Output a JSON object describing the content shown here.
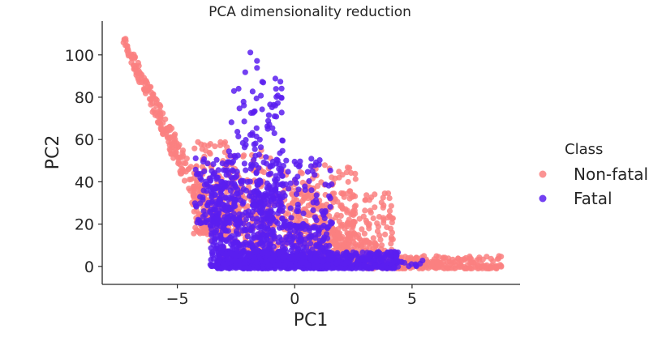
{
  "chart_data": {
    "type": "scatter",
    "title": "PCA dimensionality reduction",
    "xlabel": "PC1",
    "ylabel": "PC2",
    "xlim": [
      -8.2,
      9.6
    ],
    "ylim": [
      -8.5,
      116
    ],
    "xticks": [
      -5,
      0,
      5
    ],
    "xtick_labels": [
      "−5",
      "0",
      "5"
    ],
    "yticks": [
      0,
      20,
      40,
      60,
      80,
      100
    ],
    "ytick_labels": [
      "0",
      "20",
      "40",
      "60",
      "80",
      "100"
    ],
    "grid": false,
    "legend_title": "Class",
    "legend_position": "right",
    "series": [
      {
        "name": "Non-fatal",
        "color": "#fa8080",
        "clusters": [
          {
            "x": [
              -7.3,
              -3.6
            ],
            "y": [
              30,
              110
            ],
            "shape": "band",
            "count": 220
          },
          {
            "x": [
              -4.3,
              -2.8
            ],
            "y": [
              15,
              60
            ],
            "count": 160
          },
          {
            "x": [
              -3.2,
              4.2
            ],
            "y": [
              0,
              35
            ],
            "count": 520
          },
          {
            "x": [
              -0.5,
              2.6
            ],
            "y": [
              10,
              48
            ],
            "count": 220
          },
          {
            "x": [
              -3.0,
              -1.0
            ],
            "y": [
              20,
              55
            ],
            "count": 120
          },
          {
            "x": [
              3.0,
              8.8
            ],
            "y": [
              -1,
              5
            ],
            "count": 260
          },
          {
            "x": [
              0.5,
              3.5
            ],
            "y": [
              2,
              15
            ],
            "count": 160
          }
        ]
      },
      {
        "name": "Fatal",
        "color": "#5a1ef0",
        "clusters": [
          {
            "x": [
              -2.8,
              -1.6
            ],
            "y": [
              40,
              103
            ],
            "count": 45
          },
          {
            "x": [
              -1.8,
              -0.5
            ],
            "y": [
              25,
              90
            ],
            "count": 110
          },
          {
            "x": [
              -3.6,
              -1.0
            ],
            "y": [
              0,
              40
            ],
            "count": 420
          },
          {
            "x": [
              -1.6,
              1.6
            ],
            "y": [
              18,
              52
            ],
            "count": 120
          },
          {
            "x": [
              -3.3,
              4.4
            ],
            "y": [
              -1,
              7
            ],
            "count": 700
          },
          {
            "x": [
              -4.3,
              -2.5
            ],
            "y": [
              20,
              52
            ],
            "count": 110
          },
          {
            "x": [
              -1.2,
              1.5
            ],
            "y": [
              0,
              20
            ],
            "count": 260
          },
          {
            "x": [
              4.5,
              5.6
            ],
            "y": [
              0,
              3
            ],
            "count": 10
          }
        ]
      }
    ]
  }
}
